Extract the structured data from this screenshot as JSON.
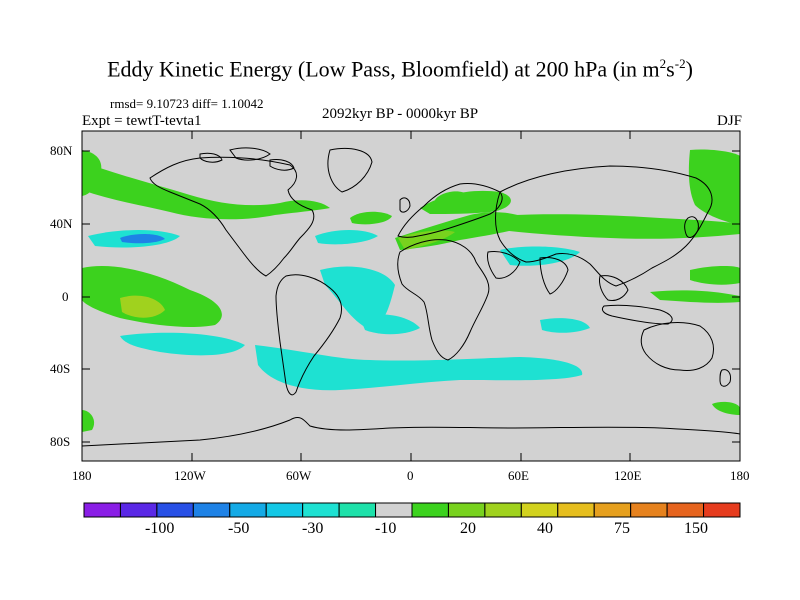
{
  "title": {
    "main": "Eddy Kinetic Energy (Low Pass, Bloomfield) at 200 hPa (in m",
    "sup1": "2",
    "mid": "s",
    "sup2": "-2",
    "end": ")"
  },
  "stats": {
    "rmsd_label": "rmsd=",
    "rmsd_value": "9.10723",
    "diff_label": "diff=",
    "diff_value": "1.10042"
  },
  "labels": {
    "left": "Expt = tewtT-tevta1",
    "center": "2092kyr BP - 0000kyr BP",
    "right": "DJF"
  },
  "axes": {
    "lat_ticks": [
      "80N",
      "40N",
      "0",
      "40S",
      "80S"
    ],
    "lon_ticks": [
      "180",
      "120W",
      "60W",
      "0",
      "60E",
      "120E",
      "180"
    ]
  },
  "colorbar": {
    "colors": [
      "#8a1ee6",
      "#5a28e6",
      "#2850e6",
      "#1e82e6",
      "#14aae6",
      "#14c8e6",
      "#1ee1d2",
      "#1ee1aa",
      "#d2d2d2",
      "#3cd21e",
      "#78d21e",
      "#a0d21e",
      "#d2d21e",
      "#e6be1e",
      "#e6a01e",
      "#e6821e",
      "#e6641e",
      "#e63c1e"
    ],
    "tick_labels": [
      "-100",
      "-50",
      "-30",
      "-10",
      "20",
      "40",
      "75",
      "150"
    ]
  },
  "colors": {
    "background_field": "#d2d2d2",
    "coastline": "#000000"
  }
}
